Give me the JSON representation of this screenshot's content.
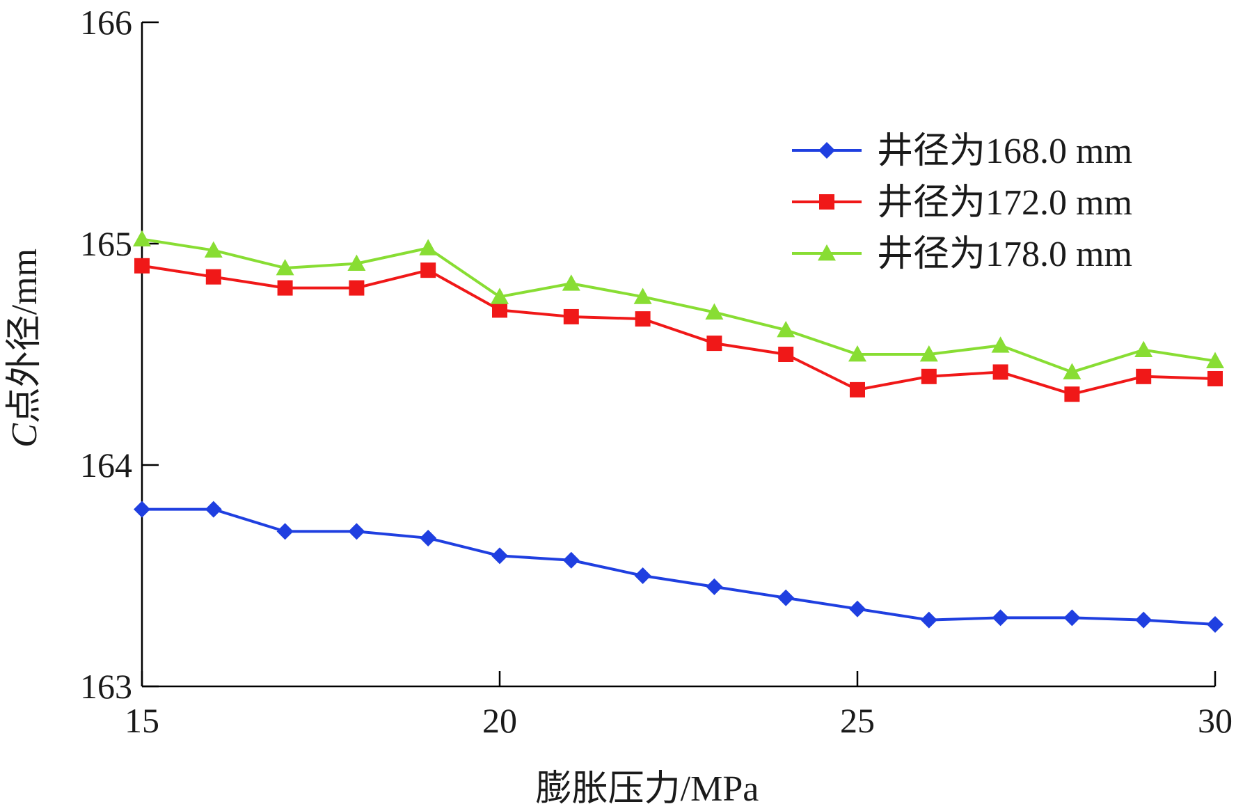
{
  "chart_data": {
    "type": "line",
    "xlabel": "膨胀压力/MPa",
    "ylabel_italic": "C",
    "ylabel_rest": "点外径/mm",
    "xlim": [
      15,
      30
    ],
    "ylim": [
      163,
      166
    ],
    "xticks": [
      "15",
      "20",
      "25",
      "30"
    ],
    "yticks": [
      "163",
      "164",
      "165",
      "166"
    ],
    "grid": false,
    "legend_position": "top-right",
    "x": [
      15,
      16,
      17,
      18,
      19,
      20,
      21,
      22,
      23,
      24,
      25,
      26,
      27,
      28,
      29,
      30
    ],
    "series": [
      {
        "name": "井径为168.0 mm",
        "color": "#1f3fe0",
        "marker": "diamond",
        "values": [
          163.8,
          163.8,
          163.7,
          163.7,
          163.67,
          163.59,
          163.57,
          163.5,
          163.45,
          163.4,
          163.35,
          163.3,
          163.31,
          163.31,
          163.3,
          163.28
        ]
      },
      {
        "name": "井径为172.0 mm",
        "color": "#f01818",
        "marker": "square",
        "values": [
          164.9,
          164.85,
          164.8,
          164.8,
          164.88,
          164.7,
          164.67,
          164.66,
          164.55,
          164.5,
          164.34,
          164.4,
          164.42,
          164.32,
          164.4,
          164.39
        ]
      },
      {
        "name": "井径为178.0 mm",
        "color": "#88dd33",
        "marker": "triangle",
        "values": [
          165.02,
          164.97,
          164.89,
          164.91,
          164.98,
          164.76,
          164.82,
          164.76,
          164.69,
          164.61,
          164.5,
          164.5,
          164.54,
          164.42,
          164.52,
          164.47
        ]
      }
    ]
  }
}
